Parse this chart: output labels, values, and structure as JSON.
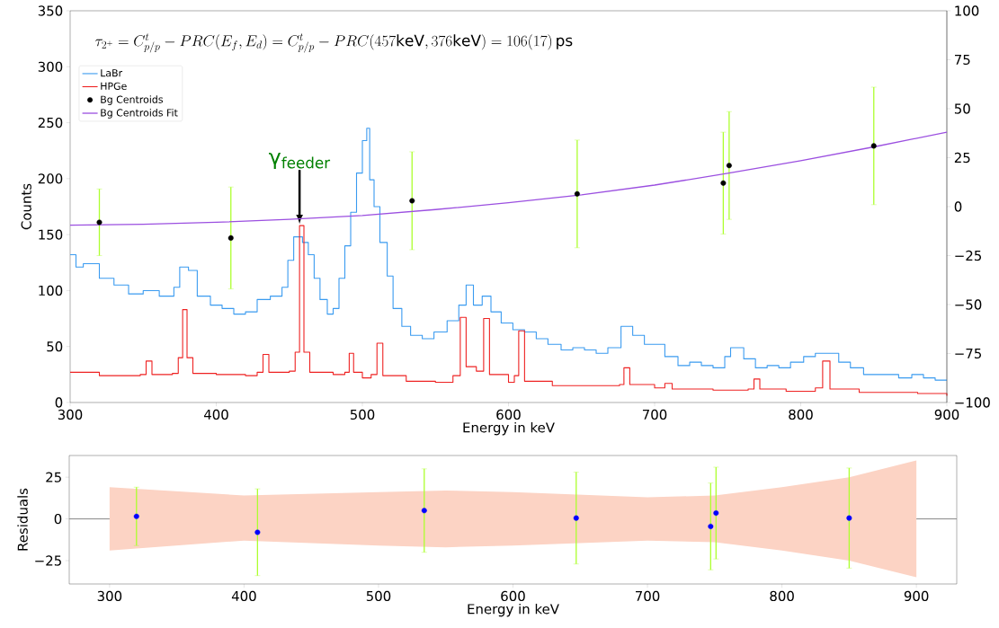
{
  "chart_data": [
    {
      "type": "step",
      "xlabel": "Energy in keV",
      "ylabel": "Counts",
      "xlim": [
        300,
        900
      ],
      "xticks": [
        300,
        400,
        500,
        600,
        700,
        800,
        900
      ],
      "ylim": [
        0,
        350
      ],
      "yticks": [
        0,
        50,
        100,
        150,
        200,
        250,
        300,
        350
      ],
      "y2lim": [
        -100,
        100
      ],
      "y2ticks": [
        {
          "value": -100,
          "label": "−100"
        },
        {
          "value": -75,
          "label": "−75"
        },
        {
          "value": -50,
          "label": "−50"
        },
        {
          "value": -25,
          "label": "−25"
        },
        0,
        25,
        50,
        75,
        100
      ],
      "legend": "top left",
      "annotations": [
        "\\tau_{2^+}=C^t_{p/p}-PRC(E_f,E_d)=C^t_{p/p}-PRC(457\\mathrm{keV},376\\mathrm{keV})=106(17)\\,\\mathrm{ps}",
        {
          "text": "γ$_{feeder}$",
          "x": 457,
          "y": 158
        }
      ],
      "series": [
        {
          "name": "LaBr",
          "color": "#3a9bf0",
          "x": [
            300,
            304,
            309,
            320,
            330,
            340,
            350,
            361,
            371,
            375,
            381,
            387,
            396,
            404,
            412,
            420,
            428,
            437,
            445,
            449,
            453,
            459,
            463,
            467,
            471,
            476,
            480,
            484,
            488,
            492,
            496,
            500,
            503,
            505,
            508,
            512,
            517,
            521,
            527,
            533,
            541,
            549,
            558,
            566,
            571,
            576,
            582,
            588,
            595,
            603,
            611,
            619,
            627,
            636,
            644,
            652,
            660,
            668,
            677,
            685,
            693,
            701,
            707,
            716,
            724,
            732,
            740,
            748,
            752,
            761,
            769,
            777,
            785,
            793,
            802,
            810,
            818,
            826,
            834,
            843,
            851,
            859,
            867,
            876,
            884,
            892,
            900
          ],
          "values": [
            132,
            121,
            124,
            111,
            105,
            97,
            100,
            95,
            103,
            121,
            118,
            95,
            87,
            84,
            79,
            81,
            92,
            95,
            103,
            127,
            148,
            143,
            132,
            111,
            92,
            79,
            84,
            111,
            140,
            170,
            205,
            234,
            245,
            199,
            175,
            143,
            113,
            84,
            68,
            60,
            57,
            63,
            73,
            87,
            105,
            87,
            95,
            81,
            71,
            65,
            63,
            57,
            52,
            47,
            49,
            47,
            44,
            49,
            68,
            60,
            52,
            52,
            41,
            33,
            36,
            33,
            31,
            41,
            49,
            39,
            31,
            33,
            31,
            36,
            41,
            44,
            44,
            36,
            31,
            25,
            25,
            25,
            22,
            25,
            22,
            20,
            20
          ]
        },
        {
          "name": "HPGe",
          "color": "#ee2222",
          "x": [
            300,
            320,
            340,
            348,
            352,
            356,
            370,
            374,
            377,
            380,
            384,
            400,
            420,
            428,
            432,
            436,
            450,
            454,
            457,
            460,
            464,
            480,
            488,
            491,
            494,
            500,
            506,
            510,
            514,
            530,
            550,
            562,
            567,
            571,
            578,
            583,
            587,
            600,
            604,
            607,
            611,
            630,
            660,
            676,
            679,
            683,
            700,
            707,
            712,
            740,
            764,
            768,
            772,
            790,
            810,
            815,
            820,
            840,
            860,
            880,
            900
          ],
          "values": [
            27,
            24,
            24,
            25,
            37,
            25,
            26,
            40,
            83,
            40,
            26,
            25,
            24,
            27,
            43,
            27,
            28,
            45,
            158,
            45,
            27,
            25,
            27,
            44,
            27,
            22,
            25,
            53,
            24,
            19,
            18,
            24,
            76,
            32,
            28,
            75,
            25,
            18,
            24,
            64,
            19,
            15,
            15,
            16,
            31,
            16,
            13,
            17,
            12,
            11,
            12,
            21,
            12,
            10,
            13,
            37,
            12,
            9,
            9,
            8,
            6
          ]
        },
        {
          "name": "Bg Centroids",
          "type": "scatter",
          "axis": "y2",
          "color": "#000000",
          "marker": "circle",
          "x": [
            320,
            410,
            534,
            647,
            747,
            751,
            850
          ],
          "values": [
            -8,
            -16,
            3,
            6.5,
            12,
            21,
            31
          ],
          "errors": [
            17,
            26,
            25,
            27.5,
            26,
            27.5,
            30
          ]
        },
        {
          "name": "Bg Centroids Fit",
          "type": "line",
          "axis": "y2",
          "color": "#9b4fe0",
          "x": [
            300,
            350,
            400,
            450,
            500,
            550,
            600,
            650,
            700,
            750,
            800,
            850,
            900
          ],
          "values": [
            -9.5,
            -9,
            -8,
            -6.5,
            -4.5,
            -1.5,
            2,
            6,
            11,
            17,
            23.5,
            30.5,
            38
          ]
        }
      ]
    },
    {
      "type": "scatter",
      "xlabel": "Energy in keV",
      "ylabel": "Residuals",
      "xlim": [
        270,
        930
      ],
      "xticks": [
        300,
        400,
        500,
        600,
        700,
        800,
        900
      ],
      "ylim": [
        -39,
        38
      ],
      "yticks": [
        {
          "value": -25,
          "label": "−25"
        },
        0,
        25
      ],
      "ref_lines": [
        {
          "axis": "y",
          "value": 0,
          "color": "#888888"
        }
      ],
      "series": [
        {
          "type": "area",
          "color": "#fcd3c4",
          "x": [
            300,
            400,
            500,
            550,
            600,
            700,
            750,
            800,
            850,
            900
          ],
          "values": [
            null,
            null,
            null,
            null,
            null,
            null,
            null,
            null,
            null,
            null
          ],
          "lower": [
            -19,
            -13,
            -16,
            -17,
            -16,
            -13,
            -14,
            -19,
            -25,
            -35
          ],
          "upper": [
            19,
            14,
            16,
            17,
            16,
            13,
            14,
            19,
            25,
            35
          ]
        },
        {
          "color": "#0000ff",
          "marker": "circle",
          "x": [
            320,
            410,
            534,
            647,
            747,
            751,
            850
          ],
          "values": [
            1.5,
            -8,
            5,
            0.5,
            -4.5,
            3.5,
            0.5
          ],
          "errors": [
            17.5,
            26,
            25,
            27.5,
            26,
            27.5,
            30
          ]
        }
      ]
    }
  ]
}
